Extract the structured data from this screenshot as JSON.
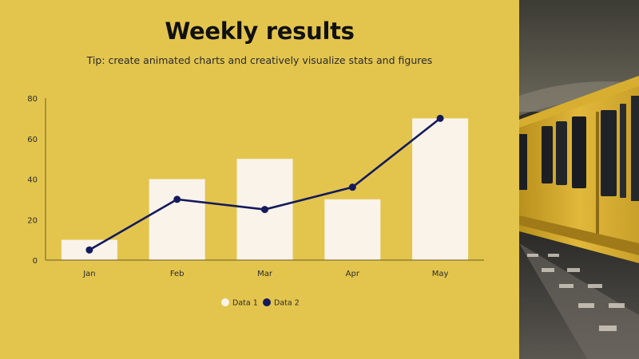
{
  "slide": {
    "title": "Weekly results",
    "subtitle": "Tip: create animated charts and creatively visualize stats and figures",
    "background_color": "#e3c54e",
    "photo": {
      "icon": "subway-train-photo"
    }
  },
  "chart_data": {
    "type": "bar",
    "categories": [
      "Jan",
      "Feb",
      "Mar",
      "Apr",
      "May"
    ],
    "series": [
      {
        "name": "Data 1",
        "type": "bar",
        "values": [
          10,
          40,
          50,
          30,
          70
        ],
        "color": "#faf3ea"
      },
      {
        "name": "Data 2",
        "type": "line",
        "values": [
          5,
          30,
          25,
          36,
          70
        ],
        "color": "#141a5c"
      }
    ],
    "yticks": [
      0,
      20,
      40,
      60,
      80
    ],
    "ylim": [
      0,
      80
    ],
    "legend": "bottom-center",
    "grid": false
  }
}
